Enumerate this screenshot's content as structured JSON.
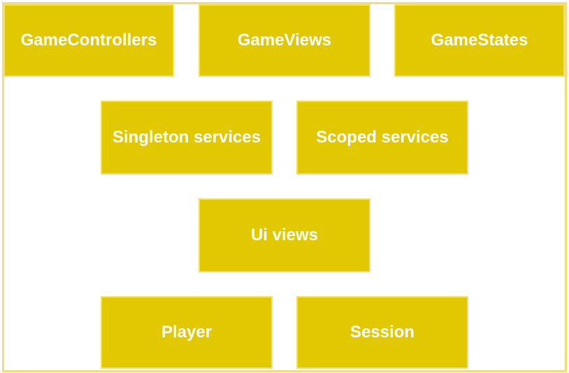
{
  "boxes": {
    "game_controllers": "GameControllers",
    "game_views": "GameViews",
    "game_states": "GameStates",
    "singleton_services": "Singleton services",
    "scoped_services": "Scoped services",
    "ui_views": "Ui views",
    "player": "Player",
    "session": "Session"
  },
  "colors": {
    "box_fill": "#e2c800",
    "box_border": "#f3df6e",
    "frame_border": "#f6dc75",
    "text": "#ffffff"
  }
}
